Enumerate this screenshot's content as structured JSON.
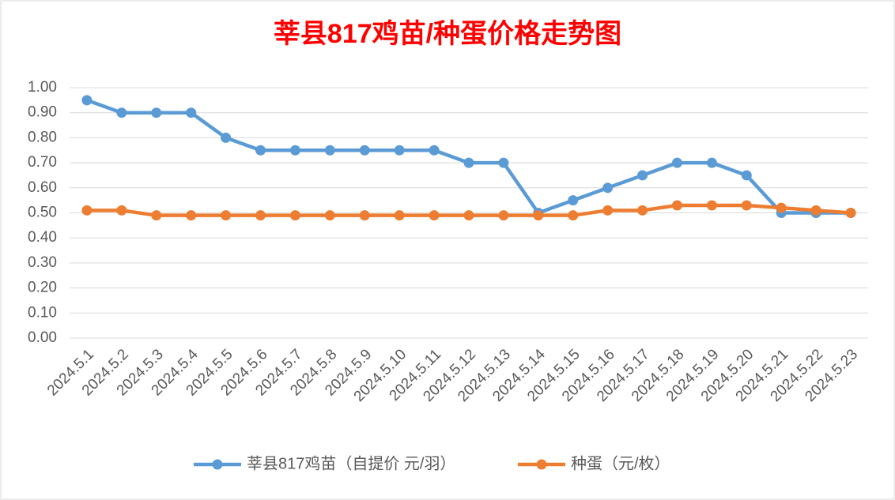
{
  "chart_data": {
    "type": "line",
    "title": "莘县817鸡苗/种蛋价格走势图",
    "categories": [
      "2024.5.1",
      "2024.5.2",
      "2024.5.3",
      "2024.5.4",
      "2024.5.5",
      "2024.5.6",
      "2024.5.7",
      "2024.5.8",
      "2024.5.9",
      "2024.5.10",
      "2024.5.11",
      "2024.5.12",
      "2024.5.13",
      "2024.5.14",
      "2024.5.15",
      "2024.5.16",
      "2024.5.17",
      "2024.5.18",
      "2024.5.19",
      "2024.5.20",
      "2024.5.21",
      "2024.5.22",
      "2024.5.23"
    ],
    "series": [
      {
        "name": "莘县817鸡苗（自提价 元/羽）",
        "color": "#5b9bd5",
        "values": [
          0.95,
          0.9,
          0.9,
          0.9,
          0.8,
          0.75,
          0.75,
          0.75,
          0.75,
          0.75,
          0.75,
          0.7,
          0.7,
          0.5,
          0.55,
          0.6,
          0.65,
          0.7,
          0.7,
          0.65,
          0.5,
          0.5,
          0.5
        ]
      },
      {
        "name": "种蛋（元/枚）",
        "color": "#ed7d31",
        "values": [
          0.51,
          0.51,
          0.49,
          0.49,
          0.49,
          0.49,
          0.49,
          0.49,
          0.49,
          0.49,
          0.49,
          0.49,
          0.49,
          0.49,
          0.49,
          0.51,
          0.51,
          0.53,
          0.53,
          0.53,
          0.52,
          0.51,
          0.5
        ]
      }
    ],
    "ylim": [
      0,
      1
    ],
    "yticks": [
      {
        "value": 0,
        "label": "0.00"
      },
      {
        "value": 0.1,
        "label": "0.10"
      },
      {
        "value": 0.2,
        "label": "0.20"
      },
      {
        "value": 0.3,
        "label": "0.30"
      },
      {
        "value": 0.4,
        "label": "0.40"
      },
      {
        "value": 0.5,
        "label": "0.50"
      },
      {
        "value": 0.6,
        "label": "0.60"
      },
      {
        "value": 0.7,
        "label": "0.70"
      },
      {
        "value": 0.8,
        "label": "0.80"
      },
      {
        "value": 0.9,
        "label": "0.90"
      },
      {
        "value": 1,
        "label": "1.00"
      }
    ],
    "grid": true,
    "legend": "bottom"
  }
}
